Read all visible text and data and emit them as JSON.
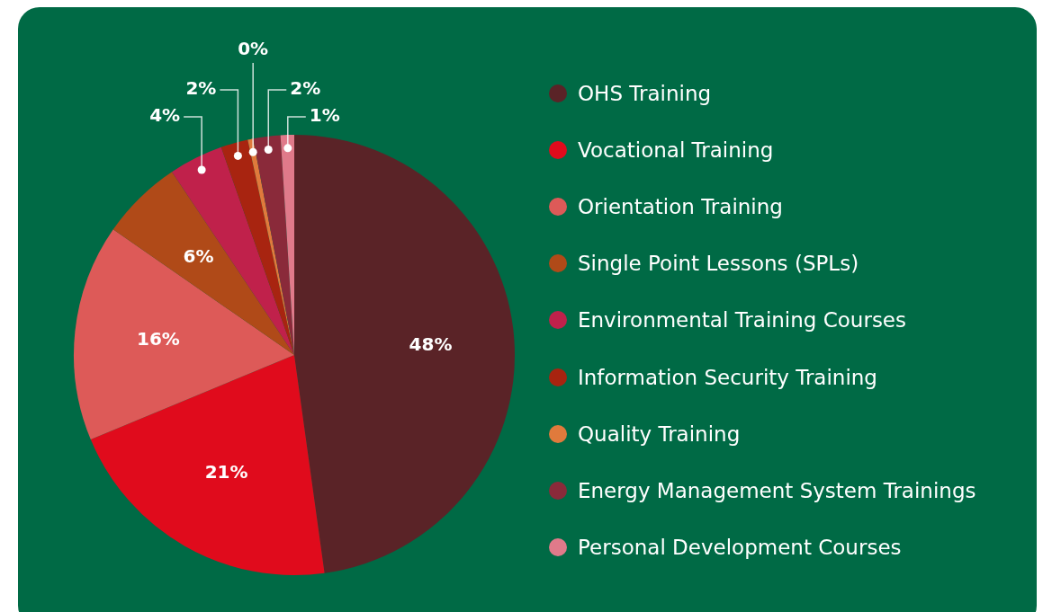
{
  "chart_data": {
    "type": "pie",
    "categories": [
      "OHS Training",
      "Vocational Training",
      "Orientation Training",
      "Single Point Lessons (SPLs)",
      "Environmental Training Courses",
      "Information Security Training",
      "Quality Training",
      "Energy Management System Trainings",
      "Personal Development Courses"
    ],
    "values": [
      48,
      21,
      16,
      6,
      4,
      2,
      0.4,
      2,
      1
    ],
    "value_labels": [
      "48%",
      "21%",
      "16%",
      "6%",
      "4%",
      "2%",
      "0%",
      "2%",
      "1%"
    ],
    "colors": [
      "#5a2327",
      "#e00b1c",
      "#dd5a58",
      "#b04a18",
      "#c0214b",
      "#a82410",
      "#e07a3c",
      "#8a2a3a",
      "#e07a8a"
    ],
    "legend": "right"
  }
}
